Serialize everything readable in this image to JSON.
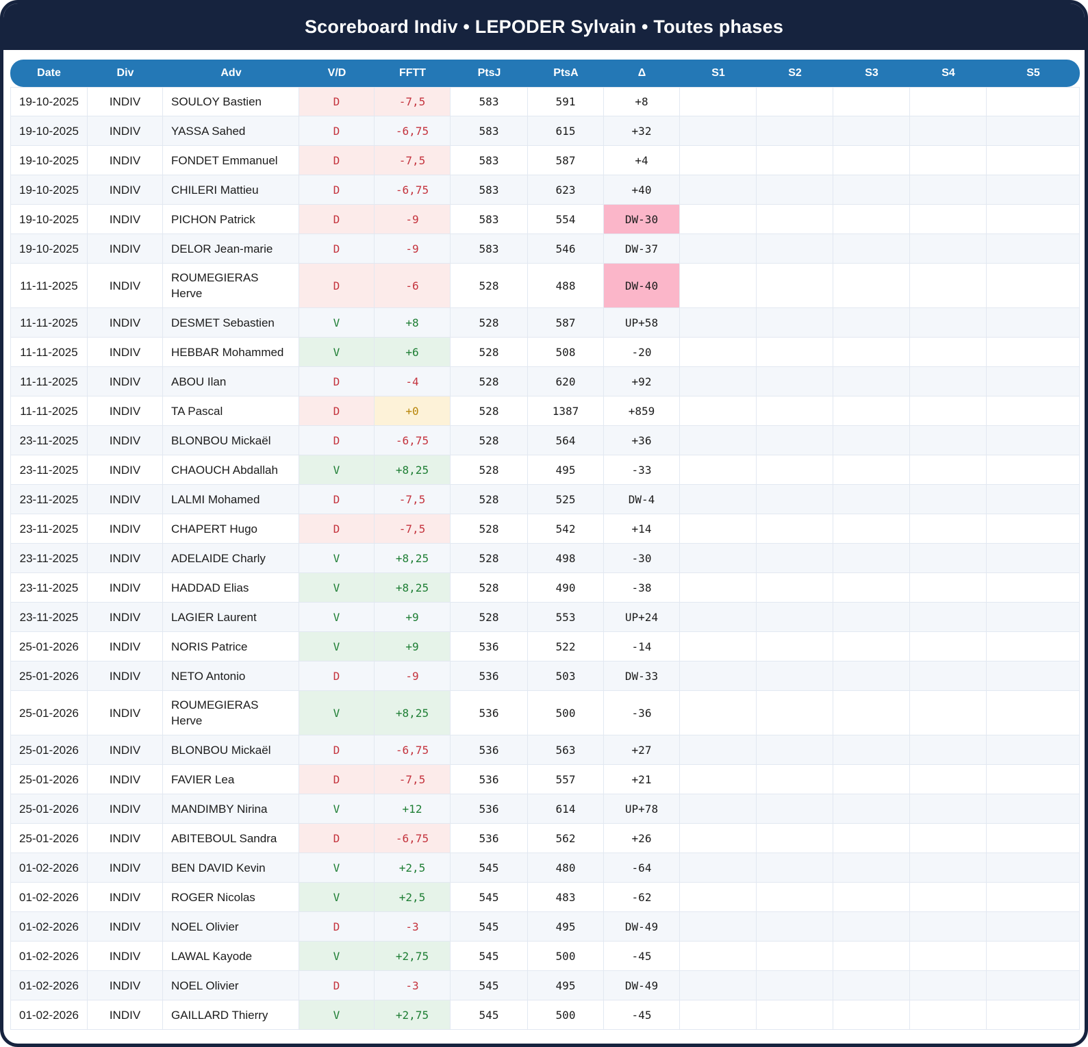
{
  "title": "Scoreboard Indiv • LEPODER Sylvain • Toutes phases",
  "columns": [
    "Date",
    "Div",
    "Adv",
    "V/D",
    "FFTT",
    "PtsJ",
    "PtsA",
    "Δ",
    "S1",
    "S2",
    "S3",
    "S4",
    "S5"
  ],
  "colors": {
    "title_band": "#16233E",
    "column_header": "#2478B6",
    "row_stripe": "#F4F7FB",
    "win_text": "#1E7E34",
    "win_bg": "#E6F3E9",
    "loss_text": "#C4333D",
    "loss_bg": "#FCEBEA",
    "zero_text": "#B8860B",
    "zero_bg": "#FDF2D8",
    "delta_down_bg": "#FBB6C9",
    "delta_up_bg": "#B6A4DE"
  },
  "rows": [
    {
      "date": "19-10-2025",
      "div": "INDIV",
      "adv": "SOULOY Bastien",
      "vd": "D",
      "fftt": "-7,5",
      "ptsj": "583",
      "ptsa": "591",
      "delta": "+8",
      "s1": "",
      "s2": "",
      "s3": "",
      "s4": "",
      "s5": ""
    },
    {
      "date": "19-10-2025",
      "div": "INDIV",
      "adv": "YASSA Sahed",
      "vd": "D",
      "fftt": "-6,75",
      "ptsj": "583",
      "ptsa": "615",
      "delta": "+32",
      "s1": "",
      "s2": "",
      "s3": "",
      "s4": "",
      "s5": ""
    },
    {
      "date": "19-10-2025",
      "div": "INDIV",
      "adv": "FONDET Emmanuel",
      "vd": "D",
      "fftt": "-7,5",
      "ptsj": "583",
      "ptsa": "587",
      "delta": "+4",
      "s1": "",
      "s2": "",
      "s3": "",
      "s4": "",
      "s5": ""
    },
    {
      "date": "19-10-2025",
      "div": "INDIV",
      "adv": "CHILERI Mattieu",
      "vd": "D",
      "fftt": "-6,75",
      "ptsj": "583",
      "ptsa": "623",
      "delta": "+40",
      "s1": "",
      "s2": "",
      "s3": "",
      "s4": "",
      "s5": ""
    },
    {
      "date": "19-10-2025",
      "div": "INDIV",
      "adv": "PICHON Patrick",
      "vd": "D",
      "fftt": "-9",
      "ptsj": "583",
      "ptsa": "554",
      "delta": "DW-30",
      "s1": "",
      "s2": "",
      "s3": "",
      "s4": "",
      "s5": ""
    },
    {
      "date": "19-10-2025",
      "div": "INDIV",
      "adv": "DELOR Jean-marie",
      "vd": "D",
      "fftt": "-9",
      "ptsj": "583",
      "ptsa": "546",
      "delta": "DW-37",
      "s1": "",
      "s2": "",
      "s3": "",
      "s4": "",
      "s5": ""
    },
    {
      "date": "11-11-2025",
      "div": "INDIV",
      "adv": "ROUMEGIERAS Herve",
      "vd": "D",
      "fftt": "-6",
      "ptsj": "528",
      "ptsa": "488",
      "delta": "DW-40",
      "s1": "",
      "s2": "",
      "s3": "",
      "s4": "",
      "s5": ""
    },
    {
      "date": "11-11-2025",
      "div": "INDIV",
      "adv": "DESMET Sebastien",
      "vd": "V",
      "fftt": "+8",
      "ptsj": "528",
      "ptsa": "587",
      "delta": "UP+58",
      "s1": "",
      "s2": "",
      "s3": "",
      "s4": "",
      "s5": ""
    },
    {
      "date": "11-11-2025",
      "div": "INDIV",
      "adv": "HEBBAR Mohammed",
      "vd": "V",
      "fftt": "+6",
      "ptsj": "528",
      "ptsa": "508",
      "delta": "-20",
      "s1": "",
      "s2": "",
      "s3": "",
      "s4": "",
      "s5": ""
    },
    {
      "date": "11-11-2025",
      "div": "INDIV",
      "adv": "ABOU Ilan",
      "vd": "D",
      "fftt": "-4",
      "ptsj": "528",
      "ptsa": "620",
      "delta": "+92",
      "s1": "",
      "s2": "",
      "s3": "",
      "s4": "",
      "s5": ""
    },
    {
      "date": "11-11-2025",
      "div": "INDIV",
      "adv": "TA Pascal",
      "vd": "D",
      "fftt": "+0",
      "ptsj": "528",
      "ptsa": "1387",
      "delta": "+859",
      "s1": "",
      "s2": "",
      "s3": "",
      "s4": "",
      "s5": ""
    },
    {
      "date": "23-11-2025",
      "div": "INDIV",
      "adv": "BLONBOU Mickaël",
      "vd": "D",
      "fftt": "-6,75",
      "ptsj": "528",
      "ptsa": "564",
      "delta": "+36",
      "s1": "",
      "s2": "",
      "s3": "",
      "s4": "",
      "s5": ""
    },
    {
      "date": "23-11-2025",
      "div": "INDIV",
      "adv": "CHAOUCH Abdallah",
      "vd": "V",
      "fftt": "+8,25",
      "ptsj": "528",
      "ptsa": "495",
      "delta": "-33",
      "s1": "",
      "s2": "",
      "s3": "",
      "s4": "",
      "s5": ""
    },
    {
      "date": "23-11-2025",
      "div": "INDIV",
      "adv": "LALMI Mohamed",
      "vd": "D",
      "fftt": "-7,5",
      "ptsj": "528",
      "ptsa": "525",
      "delta": "DW-4",
      "s1": "",
      "s2": "",
      "s3": "",
      "s4": "",
      "s5": ""
    },
    {
      "date": "23-11-2025",
      "div": "INDIV",
      "adv": "CHAPERT Hugo",
      "vd": "D",
      "fftt": "-7,5",
      "ptsj": "528",
      "ptsa": "542",
      "delta": "+14",
      "s1": "",
      "s2": "",
      "s3": "",
      "s4": "",
      "s5": ""
    },
    {
      "date": "23-11-2025",
      "div": "INDIV",
      "adv": "ADELAIDE Charly",
      "vd": "V",
      "fftt": "+8,25",
      "ptsj": "528",
      "ptsa": "498",
      "delta": "-30",
      "s1": "",
      "s2": "",
      "s3": "",
      "s4": "",
      "s5": ""
    },
    {
      "date": "23-11-2025",
      "div": "INDIV",
      "adv": "HADDAD Elias",
      "vd": "V",
      "fftt": "+8,25",
      "ptsj": "528",
      "ptsa": "490",
      "delta": "-38",
      "s1": "",
      "s2": "",
      "s3": "",
      "s4": "",
      "s5": ""
    },
    {
      "date": "23-11-2025",
      "div": "INDIV",
      "adv": "LAGIER Laurent",
      "vd": "V",
      "fftt": "+9",
      "ptsj": "528",
      "ptsa": "553",
      "delta": "UP+24",
      "s1": "",
      "s2": "",
      "s3": "",
      "s4": "",
      "s5": ""
    },
    {
      "date": "25-01-2026",
      "div": "INDIV",
      "adv": "NORIS Patrice",
      "vd": "V",
      "fftt": "+9",
      "ptsj": "536",
      "ptsa": "522",
      "delta": "-14",
      "s1": "",
      "s2": "",
      "s3": "",
      "s4": "",
      "s5": ""
    },
    {
      "date": "25-01-2026",
      "div": "INDIV",
      "adv": "NETO Antonio",
      "vd": "D",
      "fftt": "-9",
      "ptsj": "536",
      "ptsa": "503",
      "delta": "DW-33",
      "s1": "",
      "s2": "",
      "s3": "",
      "s4": "",
      "s5": ""
    },
    {
      "date": "25-01-2026",
      "div": "INDIV",
      "adv": "ROUMEGIERAS Herve",
      "vd": "V",
      "fftt": "+8,25",
      "ptsj": "536",
      "ptsa": "500",
      "delta": "-36",
      "s1": "",
      "s2": "",
      "s3": "",
      "s4": "",
      "s5": ""
    },
    {
      "date": "25-01-2026",
      "div": "INDIV",
      "adv": "BLONBOU Mickaël",
      "vd": "D",
      "fftt": "-6,75",
      "ptsj": "536",
      "ptsa": "563",
      "delta": "+27",
      "s1": "",
      "s2": "",
      "s3": "",
      "s4": "",
      "s5": ""
    },
    {
      "date": "25-01-2026",
      "div": "INDIV",
      "adv": "FAVIER Lea",
      "vd": "D",
      "fftt": "-7,5",
      "ptsj": "536",
      "ptsa": "557",
      "delta": "+21",
      "s1": "",
      "s2": "",
      "s3": "",
      "s4": "",
      "s5": ""
    },
    {
      "date": "25-01-2026",
      "div": "INDIV",
      "adv": "MANDIMBY Nirina",
      "vd": "V",
      "fftt": "+12",
      "ptsj": "536",
      "ptsa": "614",
      "delta": "UP+78",
      "s1": "",
      "s2": "",
      "s3": "",
      "s4": "",
      "s5": ""
    },
    {
      "date": "25-01-2026",
      "div": "INDIV",
      "adv": "ABITEBOUL Sandra",
      "vd": "D",
      "fftt": "-6,75",
      "ptsj": "536",
      "ptsa": "562",
      "delta": "+26",
      "s1": "",
      "s2": "",
      "s3": "",
      "s4": "",
      "s5": ""
    },
    {
      "date": "01-02-2026",
      "div": "INDIV",
      "adv": "BEN DAVID Kevin",
      "vd": "V",
      "fftt": "+2,5",
      "ptsj": "545",
      "ptsa": "480",
      "delta": "-64",
      "s1": "",
      "s2": "",
      "s3": "",
      "s4": "",
      "s5": ""
    },
    {
      "date": "01-02-2026",
      "div": "INDIV",
      "adv": "ROGER Nicolas",
      "vd": "V",
      "fftt": "+2,5",
      "ptsj": "545",
      "ptsa": "483",
      "delta": "-62",
      "s1": "",
      "s2": "",
      "s3": "",
      "s4": "",
      "s5": ""
    },
    {
      "date": "01-02-2026",
      "div": "INDIV",
      "adv": "NOEL Olivier",
      "vd": "D",
      "fftt": "-3",
      "ptsj": "545",
      "ptsa": "495",
      "delta": "DW-49",
      "s1": "",
      "s2": "",
      "s3": "",
      "s4": "",
      "s5": ""
    },
    {
      "date": "01-02-2026",
      "div": "INDIV",
      "adv": "LAWAL Kayode",
      "vd": "V",
      "fftt": "+2,75",
      "ptsj": "545",
      "ptsa": "500",
      "delta": "-45",
      "s1": "",
      "s2": "",
      "s3": "",
      "s4": "",
      "s5": ""
    },
    {
      "date": "01-02-2026",
      "div": "INDIV",
      "adv": "NOEL Olivier",
      "vd": "D",
      "fftt": "-3",
      "ptsj": "545",
      "ptsa": "495",
      "delta": "DW-49",
      "s1": "",
      "s2": "",
      "s3": "",
      "s4": "",
      "s5": ""
    },
    {
      "date": "01-02-2026",
      "div": "INDIV",
      "adv": "GAILLARD Thierry",
      "vd": "V",
      "fftt": "+2,75",
      "ptsj": "545",
      "ptsa": "500",
      "delta": "-45",
      "s1": "",
      "s2": "",
      "s3": "",
      "s4": "",
      "s5": ""
    }
  ]
}
